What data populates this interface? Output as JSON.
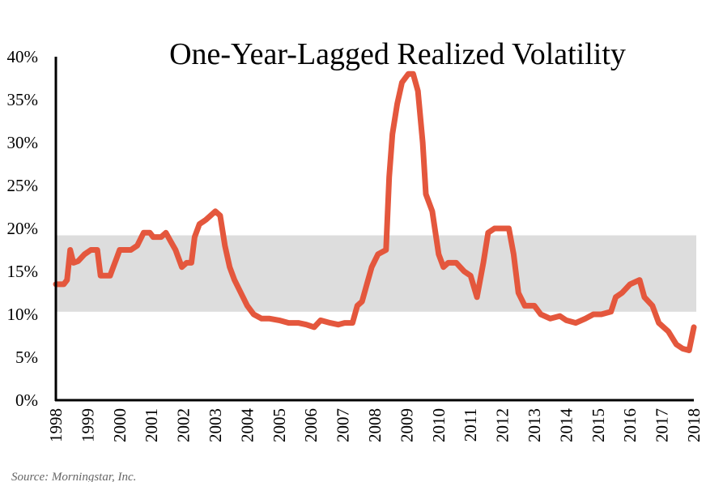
{
  "chart_data": {
    "type": "line",
    "title": "One-Year-Lagged Realized Volatility",
    "source": "Source: Morningstar, Inc.",
    "xlim": [
      1998,
      2018
    ],
    "ylim": [
      0,
      40
    ],
    "x_ticks": [
      "1998",
      "1999",
      "2000",
      "2001",
      "2002",
      "2003",
      "2004",
      "2005",
      "2006",
      "2007",
      "2008",
      "2009",
      "2010",
      "2011",
      "2012",
      "2013",
      "2014",
      "2015",
      "2016",
      "2017",
      "2018"
    ],
    "y_ticks": [
      "0%",
      "5%",
      "10%",
      "15%",
      "20%",
      "25%",
      "30%",
      "35%",
      "40%"
    ],
    "shaded_band": [
      10.3,
      19.2
    ],
    "colors": {
      "line": "#e4573d",
      "band": "#dddddd",
      "axis": "#000000"
    },
    "grid": false,
    "legend": "none",
    "series": [
      {
        "points": [
          [
            1998.0,
            13.5
          ],
          [
            1998.25,
            13.5
          ],
          [
            1998.35,
            14.0
          ],
          [
            1998.45,
            17.5
          ],
          [
            1998.55,
            16.0
          ],
          [
            1998.7,
            16.2
          ],
          [
            1998.9,
            17.0
          ],
          [
            1999.1,
            17.5
          ],
          [
            1999.3,
            17.5
          ],
          [
            1999.4,
            14.5
          ],
          [
            1999.55,
            14.5
          ],
          [
            1999.7,
            14.5
          ],
          [
            1999.8,
            15.5
          ],
          [
            1999.9,
            16.5
          ],
          [
            2000.0,
            17.5
          ],
          [
            2000.2,
            17.5
          ],
          [
            2000.35,
            17.5
          ],
          [
            2000.55,
            18.0
          ],
          [
            2000.75,
            19.5
          ],
          [
            2000.95,
            19.5
          ],
          [
            2001.05,
            19.0
          ],
          [
            2001.3,
            19.0
          ],
          [
            2001.45,
            19.5
          ],
          [
            2001.6,
            18.5
          ],
          [
            2001.75,
            17.5
          ],
          [
            2001.95,
            15.5
          ],
          [
            2002.1,
            16.0
          ],
          [
            2002.25,
            16.0
          ],
          [
            2002.35,
            19.0
          ],
          [
            2002.5,
            20.5
          ],
          [
            2002.7,
            21.0
          ],
          [
            2002.85,
            21.5
          ],
          [
            2003.0,
            22.0
          ],
          [
            2003.15,
            21.5
          ],
          [
            2003.3,
            18.0
          ],
          [
            2003.45,
            15.5
          ],
          [
            2003.6,
            14.0
          ],
          [
            2003.8,
            12.5
          ],
          [
            2004.0,
            11.0
          ],
          [
            2004.2,
            10.0
          ],
          [
            2004.45,
            9.5
          ],
          [
            2004.7,
            9.5
          ],
          [
            2005.0,
            9.3
          ],
          [
            2005.3,
            9.0
          ],
          [
            2005.6,
            9.0
          ],
          [
            2005.85,
            8.8
          ],
          [
            2006.1,
            8.5
          ],
          [
            2006.3,
            9.3
          ],
          [
            2006.6,
            9.0
          ],
          [
            2006.85,
            8.8
          ],
          [
            2007.05,
            9.0
          ],
          [
            2007.3,
            9.0
          ],
          [
            2007.45,
            11.0
          ],
          [
            2007.6,
            11.5
          ],
          [
            2007.75,
            13.5
          ],
          [
            2007.9,
            15.5
          ],
          [
            2008.1,
            17.0
          ],
          [
            2008.35,
            17.5
          ],
          [
            2008.45,
            26.0
          ],
          [
            2008.55,
            31.0
          ],
          [
            2008.7,
            34.5
          ],
          [
            2008.85,
            37.0
          ],
          [
            2009.05,
            38.0
          ],
          [
            2009.2,
            38.0
          ],
          [
            2009.35,
            36.0
          ],
          [
            2009.5,
            30.0
          ],
          [
            2009.6,
            24.0
          ],
          [
            2009.8,
            22.0
          ],
          [
            2010.0,
            17.0
          ],
          [
            2010.15,
            15.5
          ],
          [
            2010.3,
            16.0
          ],
          [
            2010.55,
            16.0
          ],
          [
            2010.8,
            15.0
          ],
          [
            2011.0,
            14.5
          ],
          [
            2011.2,
            12.0
          ],
          [
            2011.4,
            16.0
          ],
          [
            2011.55,
            19.5
          ],
          [
            2011.75,
            20.0
          ],
          [
            2012.0,
            20.0
          ],
          [
            2012.2,
            20.0
          ],
          [
            2012.35,
            17.0
          ],
          [
            2012.5,
            12.5
          ],
          [
            2012.7,
            11.0
          ],
          [
            2013.0,
            11.0
          ],
          [
            2013.2,
            10.0
          ],
          [
            2013.5,
            9.5
          ],
          [
            2013.8,
            9.8
          ],
          [
            2014.0,
            9.3
          ],
          [
            2014.3,
            9.0
          ],
          [
            2014.6,
            9.5
          ],
          [
            2014.85,
            10.0
          ],
          [
            2015.1,
            10.0
          ],
          [
            2015.4,
            10.3
          ],
          [
            2015.55,
            12.0
          ],
          [
            2015.75,
            12.5
          ],
          [
            2016.0,
            13.5
          ],
          [
            2016.3,
            14.0
          ],
          [
            2016.45,
            12.0
          ],
          [
            2016.7,
            11.0
          ],
          [
            2016.9,
            9.0
          ],
          [
            2017.2,
            8.0
          ],
          [
            2017.45,
            6.5
          ],
          [
            2017.65,
            6.0
          ],
          [
            2017.85,
            5.8
          ],
          [
            2018.0,
            8.5
          ]
        ]
      }
    ]
  }
}
